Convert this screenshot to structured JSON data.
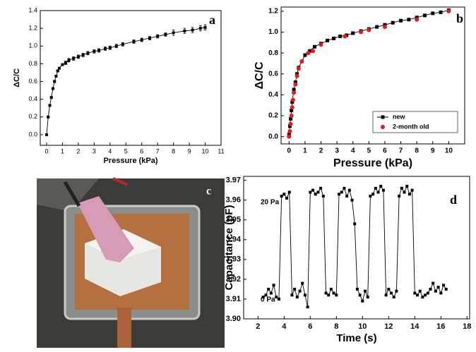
{
  "chart_data": [
    {
      "type": "line",
      "panel_label": "a",
      "x_label": "Pressure (kPa)",
      "y_label": "ΔC/C",
      "xlim": [
        -0.4,
        11
      ],
      "ylim": [
        -0.12,
        1.4
      ],
      "xticks": [
        0,
        1,
        2,
        3,
        4,
        5,
        6,
        7,
        8,
        9,
        10,
        11
      ],
      "yticks": [
        {
          "value": 0,
          "label": "0.0"
        },
        0.2,
        0.4,
        0.6,
        0.8,
        {
          "value": 1,
          "label": "1.0"
        },
        1.2,
        1.4
      ],
      "series": [
        {
          "color": "#000000",
          "marker": "square",
          "line": true,
          "x": [
            0,
            0.1,
            0.2,
            0.3,
            0.4,
            0.5,
            0.6,
            0.7,
            0.8,
            1.0,
            1.2,
            1.4,
            1.7,
            2.0,
            2.3,
            2.6,
            3.0,
            3.3,
            3.7,
            4.0,
            4.4,
            4.8,
            5.5,
            6.0,
            6.5,
            7.0,
            7.5,
            8.0,
            8.7,
            9.2,
            9.7,
            10.0
          ],
          "values": [
            0,
            0.2,
            0.33,
            0.42,
            0.52,
            0.6,
            0.66,
            0.72,
            0.75,
            0.79,
            0.81,
            0.84,
            0.86,
            0.88,
            0.9,
            0.92,
            0.94,
            0.95,
            0.97,
            0.98,
            1.0,
            1.02,
            1.05,
            1.07,
            1.09,
            1.11,
            1.13,
            1.15,
            1.17,
            1.18,
            1.2,
            1.21
          ],
          "errors": [
            0.01,
            0.01,
            0.01,
            0.01,
            0.01,
            0.01,
            0.01,
            0.01,
            0.01,
            0.01,
            0.02,
            0.02,
            0.02,
            0.02,
            0.02,
            0.02,
            0.02,
            0.02,
            0.02,
            0.02,
            0.02,
            0.02,
            0.02,
            0.02,
            0.02,
            0.02,
            0.02,
            0.03,
            0.03,
            0.03,
            0.03,
            0.03
          ]
        }
      ]
    },
    {
      "type": "line",
      "panel_label": "b",
      "x_label": "Pressure (kPa)",
      "y_label": "ΔC/C",
      "xlim": [
        -0.5,
        11
      ],
      "ylim": [
        -0.07,
        1.24
      ],
      "xticks": [
        0,
        1,
        2,
        3,
        4,
        5,
        6,
        7,
        8,
        9,
        10
      ],
      "yticks": [
        {
          "value": 0,
          "label": "0.0"
        },
        0.2,
        0.4,
        0.6,
        0.8,
        {
          "value": 1,
          "label": "1.0"
        },
        1.2
      ],
      "legend": "lower right",
      "series": [
        {
          "name": "new",
          "color": "#000000",
          "marker": "square",
          "line": true,
          "x": [
            0,
            0.05,
            0.1,
            0.15,
            0.2,
            0.3,
            0.4,
            0.5,
            0.6,
            0.8,
            1.0,
            1.3,
            1.6,
            2.0,
            2.4,
            2.8,
            3.2,
            3.6,
            4.0,
            4.5,
            5.0,
            5.5,
            6.0,
            6.5,
            7.0,
            7.5,
            8.0,
            8.5,
            9.0,
            9.5,
            10.0
          ],
          "values": [
            0.02,
            0.1,
            0.17,
            0.25,
            0.33,
            0.45,
            0.52,
            0.6,
            0.66,
            0.72,
            0.78,
            0.82,
            0.86,
            0.89,
            0.92,
            0.94,
            0.96,
            0.97,
            0.99,
            1.01,
            1.03,
            1.05,
            1.07,
            1.09,
            1.11,
            1.12,
            1.14,
            1.16,
            1.18,
            1.19,
            1.21
          ]
        },
        {
          "name": "2-month old",
          "color": "#e8191c",
          "marker": "circle",
          "line": false,
          "x": [
            0,
            0.05,
            0.1,
            0.15,
            0.2,
            0.25,
            0.3,
            0.4,
            0.5,
            0.6,
            0.8,
            1.2,
            1.5,
            2.0,
            3.5,
            4.5,
            5.0,
            6.0,
            8.0,
            10.0
          ],
          "values": [
            0,
            0.05,
            0.12,
            0.2,
            0.28,
            0.35,
            0.42,
            0.5,
            0.58,
            0.65,
            0.72,
            0.8,
            0.82,
            0.88,
            0.96,
            1.0,
            1.02,
            1.05,
            1.12,
            1.2
          ]
        }
      ]
    },
    {
      "type": "line",
      "panel_label": "d",
      "x_label": "Time (s)",
      "y_label": "Capacitance (pF)",
      "annotations": [
        "20 Pa",
        "0 Pa"
      ],
      "xlim": [
        0.9,
        18.2
      ],
      "ylim": [
        3.9,
        3.972
      ],
      "xticks": [
        2,
        4,
        6,
        8,
        10,
        12,
        14,
        16,
        18
      ],
      "yticks": [
        {
          "value": 3.9,
          "label": "3.90"
        },
        3.91,
        3.92,
        3.93,
        3.94,
        3.95,
        3.96,
        3.97
      ],
      "series": [
        {
          "color": "#000000",
          "marker": "square",
          "line": true,
          "x": [
            2.4,
            2.6,
            2.8,
            3.0,
            3.2,
            3.4,
            3.6,
            3.8,
            4.0,
            4.2,
            4.4,
            4.6,
            4.8,
            5.0,
            5.2,
            5.4,
            5.6,
            5.8,
            6.0,
            6.2,
            6.4,
            6.6,
            6.8,
            7.0,
            7.2,
            7.4,
            7.6,
            7.8,
            8.0,
            8.2,
            8.4,
            8.6,
            8.8,
            9.0,
            9.2,
            9.4,
            9.6,
            9.8,
            10.0,
            10.2,
            10.4,
            10.6,
            10.8,
            11.0,
            11.2,
            11.4,
            11.6,
            11.8,
            12.0,
            12.2,
            12.4,
            12.6,
            12.8,
            13.0,
            13.2,
            13.4,
            13.6,
            13.8,
            14.0,
            14.2,
            14.4,
            14.6,
            14.8,
            15.0,
            15.2,
            15.4,
            15.6,
            15.8,
            16.0,
            16.2,
            16.4
          ],
          "values": [
            3.911,
            3.912,
            3.915,
            3.913,
            3.917,
            3.911,
            3.91,
            3.962,
            3.963,
            3.961,
            3.964,
            3.912,
            3.915,
            3.911,
            3.914,
            3.918,
            3.912,
            3.906,
            3.964,
            3.965,
            3.963,
            3.964,
            3.966,
            3.962,
            3.913,
            3.912,
            3.915,
            3.913,
            3.912,
            3.963,
            3.964,
            3.966,
            3.962,
            3.965,
            3.96,
            3.948,
            3.915,
            3.912,
            3.909,
            3.914,
            3.911,
            3.962,
            3.963,
            3.966,
            3.964,
            3.967,
            3.965,
            3.912,
            3.915,
            3.913,
            3.911,
            3.914,
            3.962,
            3.966,
            3.964,
            3.967,
            3.963,
            3.965,
            3.913,
            3.912,
            3.914,
            3.911,
            3.912,
            3.913,
            3.915,
            3.918,
            3.914,
            3.916,
            3.913,
            3.917,
            3.915
          ]
        }
      ]
    }
  ],
  "photo": {
    "panel_label": "c"
  }
}
